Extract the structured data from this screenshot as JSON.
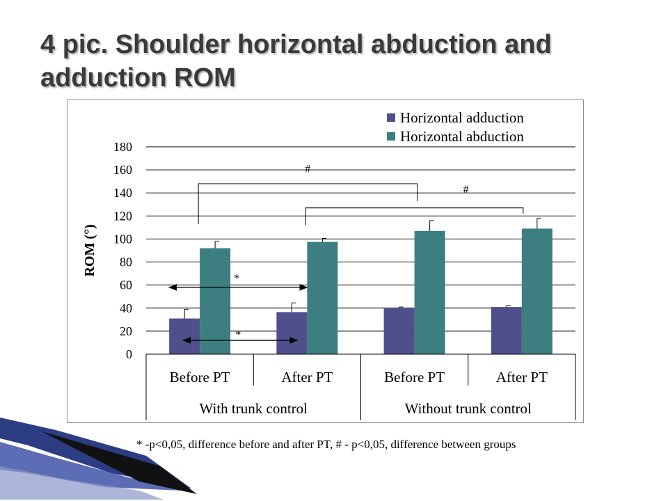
{
  "slide": {
    "title": "4 pic. Shoulder horizontal abduction and adduction ROM",
    "footnote": "* -p<0,05, difference before and after PT,  # - p<0,05, difference between groups"
  },
  "chart_data": {
    "type": "bar",
    "title": "",
    "ylabel": "ROM (°)",
    "xlabel": "",
    "ylim": [
      0,
      180
    ],
    "yticks": [
      0,
      20,
      40,
      60,
      80,
      100,
      120,
      140,
      160,
      180
    ],
    "grid": true,
    "legend_position": "top-right",
    "categories": [
      "Before PT",
      "After PT",
      "Before PT",
      "After PT"
    ],
    "groups": [
      {
        "label": "With trunk control",
        "categories": [
          0,
          1
        ]
      },
      {
        "label": "Without trunk control",
        "categories": [
          2,
          3
        ]
      }
    ],
    "series": [
      {
        "name": "Horizontal adduction",
        "color": "#4f4f8b",
        "values": [
          31,
          36.5,
          40,
          41
        ],
        "errors": [
          8,
          8,
          1,
          1
        ]
      },
      {
        "name": "Horizontal abduction",
        "color": "#3d7f80",
        "values": [
          92,
          97.5,
          107,
          109
        ],
        "errors": [
          6,
          3,
          9,
          9
        ]
      }
    ],
    "annotations": [
      {
        "symbol": "*",
        "kind": "arrow",
        "note": "adduction Before PT vs After PT (with trunk control)"
      },
      {
        "symbol": "*",
        "kind": "arrow",
        "note": "abduction Before PT vs After PT (with trunk control)"
      },
      {
        "symbol": "#",
        "kind": "bracket",
        "note": "Before PT with vs without trunk control"
      },
      {
        "symbol": "#",
        "kind": "bracket",
        "note": "After PT with vs without trunk control"
      }
    ]
  }
}
